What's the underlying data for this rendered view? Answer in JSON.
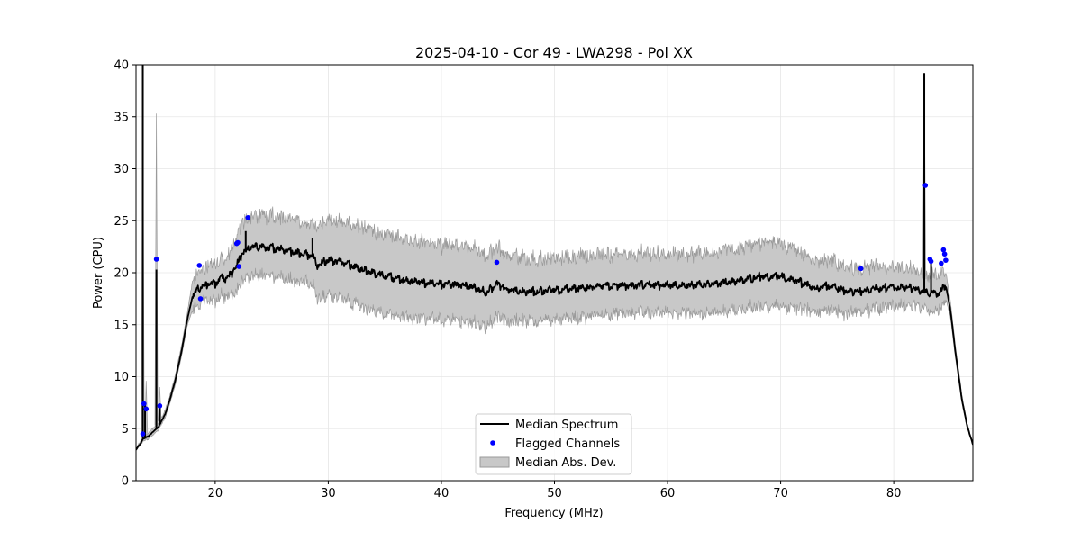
{
  "chart_data": {
    "type": "line",
    "title": "2025-04-10 - Cor 49 - LWA298 - Pol XX",
    "xlabel": "Frequency (MHz)",
    "ylabel": "Power (CPU)",
    "xlim": [
      13.0,
      87.0
    ],
    "ylim": [
      0,
      40
    ],
    "xticks": [
      20,
      30,
      40,
      50,
      60,
      70,
      80
    ],
    "yticks": [
      0,
      5,
      10,
      15,
      20,
      25,
      30,
      35,
      40
    ],
    "grid": true,
    "legend_position": "lower-center",
    "legend": {
      "median": "Median Spectrum",
      "flagged": "Flagged Channels",
      "mad": "Median Abs. Dev."
    },
    "colors": {
      "median": "#000000",
      "flagged": "#0000ff",
      "mad_fill": "#c8c8c8",
      "mad_edge": "#9a9a9a",
      "grid": "#e6e6e6"
    },
    "median_anchors": [
      [
        13.0,
        3.0
      ],
      [
        13.3,
        3.4
      ],
      [
        13.6,
        4.0
      ],
      [
        14.0,
        4.2
      ],
      [
        14.5,
        4.7
      ],
      [
        15.0,
        5.2
      ],
      [
        15.5,
        6.2
      ],
      [
        16.0,
        7.8
      ],
      [
        16.5,
        9.8
      ],
      [
        17.0,
        12.3
      ],
      [
        17.5,
        15.3
      ],
      [
        18.0,
        17.8
      ],
      [
        18.5,
        18.4
      ],
      [
        19.0,
        18.8
      ],
      [
        19.5,
        19.0
      ],
      [
        20.0,
        19.0
      ],
      [
        20.5,
        19.5
      ],
      [
        21.0,
        19.4
      ],
      [
        21.5,
        20.0
      ],
      [
        22.0,
        21.0
      ],
      [
        22.5,
        22.0
      ],
      [
        23.0,
        22.4
      ],
      [
        24.0,
        22.5
      ],
      [
        25.0,
        22.4
      ],
      [
        26.0,
        22.2
      ],
      [
        27.0,
        22.0
      ],
      [
        28.0,
        21.8
      ],
      [
        28.7,
        21.5
      ],
      [
        29.0,
        20.7
      ],
      [
        30.0,
        21.2
      ],
      [
        31.0,
        21.0
      ],
      [
        32.0,
        20.7
      ],
      [
        33.0,
        20.3
      ],
      [
        34.0,
        20.0
      ],
      [
        35.0,
        19.7
      ],
      [
        36.0,
        19.4
      ],
      [
        37.0,
        19.2
      ],
      [
        38.0,
        19.1
      ],
      [
        39.0,
        19.0
      ],
      [
        40.0,
        18.9
      ],
      [
        41.0,
        18.9
      ],
      [
        42.0,
        18.8
      ],
      [
        43.0,
        18.5
      ],
      [
        44.0,
        18.1
      ],
      [
        44.9,
        19.0
      ],
      [
        46.0,
        18.3
      ],
      [
        48.0,
        18.2
      ],
      [
        50.0,
        18.3
      ],
      [
        52.0,
        18.5
      ],
      [
        54.0,
        18.7
      ],
      [
        56.0,
        18.8
      ],
      [
        58.0,
        18.8
      ],
      [
        60.0,
        18.8
      ],
      [
        62.0,
        18.8
      ],
      [
        64.0,
        18.9
      ],
      [
        66.0,
        19.2
      ],
      [
        68.0,
        19.6
      ],
      [
        70.0,
        19.7
      ],
      [
        72.0,
        19.0
      ],
      [
        73.3,
        18.4
      ],
      [
        74.0,
        18.8
      ],
      [
        76.0,
        18.2
      ],
      [
        77.0,
        18.2
      ],
      [
        78.0,
        18.4
      ],
      [
        80.0,
        18.6
      ],
      [
        82.0,
        18.5
      ],
      [
        83.0,
        18.0
      ],
      [
        84.0,
        18.0
      ],
      [
        84.6,
        18.8
      ],
      [
        85.0,
        16.5
      ],
      [
        85.5,
        12.0
      ],
      [
        86.0,
        8.0
      ],
      [
        86.5,
        5.2
      ],
      [
        87.0,
        3.5
      ]
    ],
    "mad_anchors": [
      [
        13.0,
        0.1
      ],
      [
        14.0,
        0.3
      ],
      [
        16.0,
        0.4
      ],
      [
        17.5,
        0.6
      ],
      [
        18.0,
        1.5
      ],
      [
        19.0,
        1.6
      ],
      [
        20.0,
        1.7
      ],
      [
        21.0,
        2.0
      ],
      [
        22.0,
        2.7
      ],
      [
        23.0,
        3.0
      ],
      [
        25.0,
        3.0
      ],
      [
        27.0,
        3.0
      ],
      [
        28.7,
        3.0
      ],
      [
        29.0,
        3.6
      ],
      [
        31.0,
        3.9
      ],
      [
        33.0,
        4.0
      ],
      [
        35.0,
        4.0
      ],
      [
        38.0,
        3.9
      ],
      [
        40.0,
        3.8
      ],
      [
        42.0,
        3.8
      ],
      [
        44.0,
        3.6
      ],
      [
        44.9,
        3.6
      ],
      [
        46.0,
        3.3
      ],
      [
        48.0,
        3.1
      ],
      [
        52.0,
        3.1
      ],
      [
        56.0,
        3.0
      ],
      [
        60.0,
        3.0
      ],
      [
        64.0,
        3.0
      ],
      [
        68.0,
        3.2
      ],
      [
        70.0,
        3.2
      ],
      [
        72.0,
        2.8
      ],
      [
        74.0,
        2.5
      ],
      [
        76.0,
        2.3
      ],
      [
        78.0,
        2.2
      ],
      [
        80.0,
        2.0
      ],
      [
        82.0,
        1.8
      ],
      [
        84.0,
        1.8
      ],
      [
        84.6,
        1.4
      ],
      [
        85.0,
        0.8
      ],
      [
        86.0,
        0.4
      ],
      [
        87.0,
        0.1
      ]
    ],
    "median_spikes": [
      {
        "x": 13.6,
        "y": 40.0
      },
      {
        "x": 13.8,
        "y": 7.4
      },
      {
        "x": 14.8,
        "y": 20.3
      },
      {
        "x": 15.1,
        "y": 7.2
      },
      {
        "x": 22.7,
        "y": 24.0
      },
      {
        "x": 28.6,
        "y": 23.3
      },
      {
        "x": 82.7,
        "y": 39.2
      },
      {
        "x": 83.3,
        "y": 21.0
      }
    ],
    "mad_spikes": [
      {
        "x": 13.6,
        "y": 40.0
      },
      {
        "x": 13.9,
        "y": 9.6
      },
      {
        "x": 14.8,
        "y": 35.3
      },
      {
        "x": 15.1,
        "y": 9.0
      },
      {
        "x": 82.7,
        "y": 39.0
      }
    ],
    "flagged_points": [
      {
        "x": 13.6,
        "y": 4.5
      },
      {
        "x": 13.7,
        "y": 7.4
      },
      {
        "x": 13.9,
        "y": 6.9
      },
      {
        "x": 14.8,
        "y": 21.3
      },
      {
        "x": 15.1,
        "y": 7.2
      },
      {
        "x": 18.6,
        "y": 20.7
      },
      {
        "x": 18.7,
        "y": 17.5
      },
      {
        "x": 21.9,
        "y": 22.8
      },
      {
        "x": 22.0,
        "y": 22.9
      },
      {
        "x": 22.1,
        "y": 20.6
      },
      {
        "x": 22.9,
        "y": 25.3
      },
      {
        "x": 44.9,
        "y": 21.0
      },
      {
        "x": 77.1,
        "y": 20.4
      },
      {
        "x": 82.8,
        "y": 28.4
      },
      {
        "x": 83.2,
        "y": 21.3
      },
      {
        "x": 83.3,
        "y": 21.1
      },
      {
        "x": 84.2,
        "y": 20.9
      },
      {
        "x": 84.4,
        "y": 22.2
      },
      {
        "x": 84.5,
        "y": 21.8
      },
      {
        "x": 84.6,
        "y": 21.2
      }
    ]
  }
}
